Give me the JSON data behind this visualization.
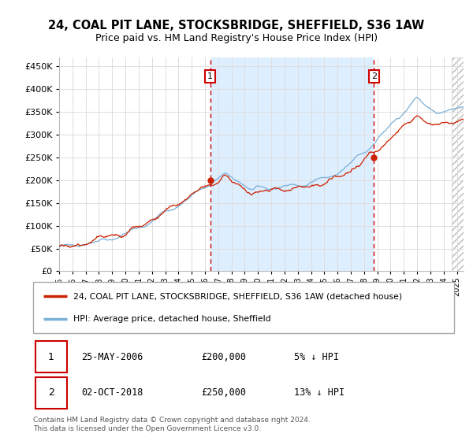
{
  "title": "24, COAL PIT LANE, STOCKSBRIDGE, SHEFFIELD, S36 1AW",
  "subtitle": "Price paid vs. HM Land Registry's House Price Index (HPI)",
  "ylim": [
    0,
    470000
  ],
  "yticks": [
    0,
    50000,
    100000,
    150000,
    200000,
    250000,
    300000,
    350000,
    400000,
    450000
  ],
  "xlim_start": 1995.0,
  "xlim_end": 2025.5,
  "plot_bg_color": "#ffffff",
  "shade_color": "#ddeeff",
  "hpi_color": "#7ab0d8",
  "price_color": "#cc2200",
  "sale1_date": 2006.39,
  "sale1_price": 200000,
  "sale2_date": 2018.75,
  "sale2_price": 250000,
  "legend_label1": "24, COAL PIT LANE, STOCKSBRIDGE, SHEFFIELD, S36 1AW (detached house)",
  "legend_label2": "HPI: Average price, detached house, Sheffield",
  "annotation1_label": "25-MAY-2006",
  "annotation1_price": "£200,000",
  "annotation1_pct": "5% ↓ HPI",
  "annotation2_label": "02-OCT-2018",
  "annotation2_price": "£250,000",
  "annotation2_pct": "13% ↓ HPI",
  "footer": "Contains HM Land Registry data © Crown copyright and database right 2024.\nThis data is licensed under the Open Government Licence v3.0.",
  "hatch_start": 2024.58,
  "grid_color": "#dddddd"
}
